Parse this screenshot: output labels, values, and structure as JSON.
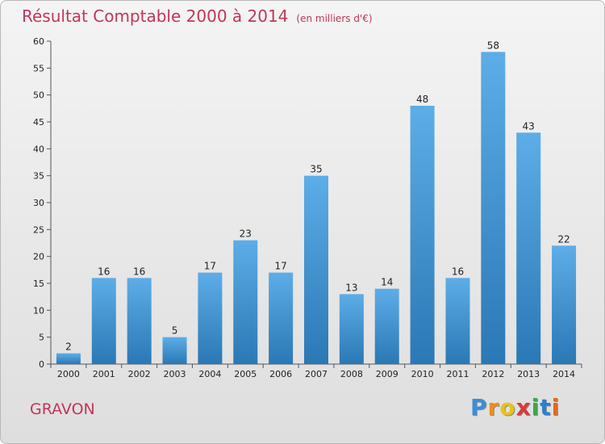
{
  "title": "Résultat Comptable 2000 à 2014",
  "subtitle": "(en milliers d'€)",
  "commune": "GRAVON",
  "logo": {
    "text": "Proxiti",
    "letters": [
      "P",
      "r",
      "o",
      "x",
      "i",
      "t",
      "i"
    ],
    "colors": [
      "#3a8fd6",
      "#f08c1a",
      "#e8c21a",
      "#d83a3a",
      "#3aa84a",
      "#2b7fd0",
      "#e36a1a"
    ]
  },
  "colors": {
    "bar_top": "#5dade8",
    "bar_bottom": "#2a78b5",
    "title": "#c0365a"
  },
  "chart_data": {
    "type": "bar",
    "categories": [
      "2000",
      "2001",
      "2002",
      "2003",
      "2004",
      "2005",
      "2006",
      "2007",
      "2008",
      "2009",
      "2010",
      "2011",
      "2012",
      "2013",
      "2014"
    ],
    "values": [
      2,
      16,
      16,
      5,
      17,
      23,
      17,
      35,
      13,
      14,
      48,
      16,
      58,
      43,
      22
    ],
    "yticks": [
      0,
      5,
      10,
      15,
      20,
      25,
      30,
      35,
      40,
      45,
      50,
      55,
      60
    ],
    "ylim": [
      0,
      60
    ],
    "grid": false,
    "legend": "none"
  }
}
